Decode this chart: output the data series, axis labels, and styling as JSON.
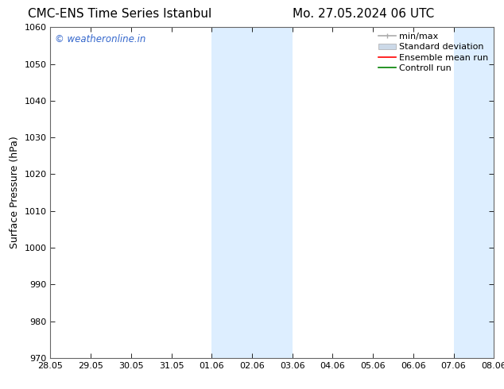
{
  "title_left": "CMC-ENS Time Series Istanbul",
  "title_right": "Mo. 27.05.2024 06 UTC",
  "ylabel": "Surface Pressure (hPa)",
  "ylim": [
    970,
    1060
  ],
  "yticks": [
    970,
    980,
    990,
    1000,
    1010,
    1020,
    1030,
    1040,
    1050,
    1060
  ],
  "xlabel_ticks": [
    "28.05",
    "29.05",
    "30.05",
    "31.05",
    "01.06",
    "02.06",
    "03.06",
    "04.06",
    "05.06",
    "06.06",
    "07.06",
    "08.06"
  ],
  "x_positions": [
    0,
    1,
    2,
    3,
    4,
    5,
    6,
    7,
    8,
    9,
    10,
    11
  ],
  "shaded_regions": [
    {
      "xmin": 4,
      "xmax": 6,
      "color": "#ddeeff"
    },
    {
      "xmin": 10,
      "xmax": 12,
      "color": "#ddeeff"
    }
  ],
  "watermark_text": "© weatheronline.in",
  "watermark_color": "#3366cc",
  "legend_items": [
    {
      "label": "min/max",
      "color": "#aaaaaa",
      "lw": 1.2,
      "style": "line_with_caps"
    },
    {
      "label": "Standard deviation",
      "color": "#ccd9e8",
      "lw": 8,
      "style": "band"
    },
    {
      "label": "Ensemble mean run",
      "color": "red",
      "lw": 1.2,
      "style": "line"
    },
    {
      "label": "Controll run",
      "color": "green",
      "lw": 1.2,
      "style": "line"
    }
  ],
  "bg_color": "#ffffff",
  "spine_color": "#666666",
  "title_fontsize": 11,
  "tick_fontsize": 8,
  "ylabel_fontsize": 9,
  "legend_fontsize": 8
}
